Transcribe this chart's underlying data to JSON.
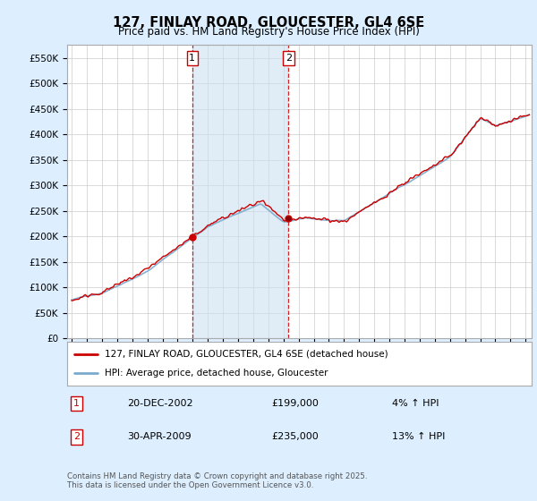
{
  "title": "127, FINLAY ROAD, GLOUCESTER, GL4 6SE",
  "subtitle": "Price paid vs. HM Land Registry's House Price Index (HPI)",
  "legend_label_red": "127, FINLAY ROAD, GLOUCESTER, GL4 6SE (detached house)",
  "legend_label_blue": "HPI: Average price, detached house, Gloucester",
  "annotation1_date": "20-DEC-2002",
  "annotation1_price": "£199,000",
  "annotation1_hpi": "4% ↑ HPI",
  "annotation1_year": 2002.97,
  "annotation1_value": 199000,
  "annotation2_date": "30-APR-2009",
  "annotation2_price": "£235,000",
  "annotation2_hpi": "13% ↑ HPI",
  "annotation2_year": 2009.33,
  "annotation2_value": 235000,
  "footer": "Contains HM Land Registry data © Crown copyright and database right 2025.\nThis data is licensed under the Open Government Licence v3.0.",
  "ylim": [
    0,
    575000
  ],
  "yticks": [
    0,
    50000,
    100000,
    150000,
    200000,
    250000,
    300000,
    350000,
    400000,
    450000,
    500000,
    550000
  ],
  "color_red": "#cc0000",
  "color_blue_line": "#7aaacc",
  "color_blue_fill": "#cce0f0",
  "background_color": "#ddeeff",
  "plot_bg": "#ffffff",
  "grid_color": "#cccccc",
  "annotation_color": "#cc0000",
  "annotation_box_color": "#000000"
}
